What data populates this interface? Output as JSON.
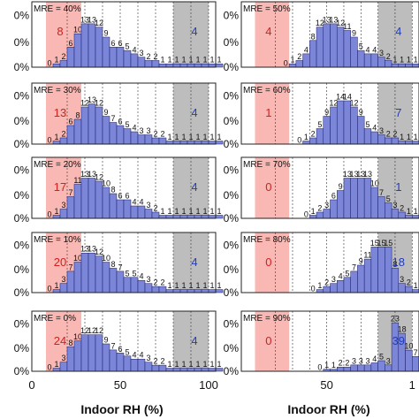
{
  "figure": {
    "xlabel": "Indoor RH (%)",
    "y_tick_suffix": "0%",
    "y_tick_labels": [
      "0%",
      "0%",
      "0%"
    ],
    "x_ticks_left": [
      "0",
      "50",
      "100"
    ],
    "x_ticks_right": [
      "50",
      "1"
    ]
  },
  "colors": {
    "bar": "#7b86d8",
    "bar_edge": "#1a1a66",
    "red_band": "#f9b8b3",
    "gray_band": "#bdbdbd",
    "red_text": "#d02020",
    "blue_text": "#1f3cc0"
  },
  "chart_data": [
    {
      "type": "bar",
      "panel": "left-1",
      "annotation": "MRE = 40%",
      "red_count": "8",
      "blue_count": "4",
      "x_bin_width": 4,
      "x_start": 8,
      "xlim": [
        0,
        104
      ],
      "bar_labels": [
        "0",
        "1",
        "2",
        "6",
        "10",
        "13",
        "13",
        "12",
        "9",
        "6",
        "6",
        "5",
        "4",
        "3",
        "2",
        "2",
        "1",
        "1",
        "1",
        "1",
        "1",
        "1",
        "1",
        "1",
        "1"
      ],
      "values": [
        0,
        1,
        2,
        6,
        10,
        13,
        13,
        12,
        9,
        6,
        6,
        5,
        4,
        3,
        2,
        2,
        1,
        1,
        1,
        1,
        1,
        1,
        1,
        1,
        1
      ],
      "ylim": [
        0,
        18
      ]
    },
    {
      "type": "bar",
      "panel": "right-1",
      "annotation": "MRE = 50%",
      "red_count": "4",
      "blue_count": "4",
      "x_bin_width": 4,
      "x_start": 8,
      "xlim": [
        0,
        104
      ],
      "bar_labels": [
        "",
        "",
        "",
        "",
        "0",
        "1",
        "2",
        "4",
        "8",
        "12",
        "13",
        "13",
        "12",
        "11",
        "9",
        "5",
        "4",
        "4",
        "3",
        "2",
        "1",
        "1",
        "1",
        "1",
        "1"
      ],
      "values": [
        0,
        0,
        0,
        0,
        0,
        1,
        2,
        4,
        8,
        12,
        13,
        13,
        12,
        11,
        9,
        5,
        4,
        4,
        3,
        2,
        1,
        1,
        1,
        1,
        1
      ],
      "ylim": [
        0,
        18
      ]
    },
    {
      "type": "bar",
      "panel": "left-2",
      "annotation": "MRE = 30%",
      "red_count": "13",
      "blue_count": "4",
      "x_bin_width": 4,
      "x_start": 8,
      "xlim": [
        0,
        104
      ],
      "bar_labels": [
        "0",
        "1",
        "2",
        "6",
        "8",
        "12",
        "13",
        "12",
        "9",
        "7",
        "6",
        "5",
        "4",
        "3",
        "3",
        "2",
        "2",
        "1",
        "1",
        "1",
        "1",
        "1",
        "1",
        "1",
        "1"
      ],
      "values": [
        0,
        1,
        2,
        6,
        8,
        12,
        13,
        12,
        9,
        7,
        6,
        5,
        4,
        3,
        3,
        2,
        2,
        1,
        1,
        1,
        1,
        1,
        1,
        1,
        1
      ],
      "ylim": [
        0,
        18
      ]
    },
    {
      "type": "bar",
      "panel": "right-2",
      "annotation": "MRE = 60%",
      "red_count": "1",
      "blue_count": "7",
      "x_bin_width": 4,
      "x_start": 8,
      "xlim": [
        0,
        104
      ],
      "bar_labels": [
        "",
        "",
        "",
        "",
        "",
        "",
        "0",
        "1",
        "2",
        "5",
        "9",
        "12",
        "14",
        "14",
        "12",
        "9",
        "5",
        "4",
        "3",
        "2",
        "2",
        "1",
        "1",
        "1",
        "1"
      ],
      "values": [
        0,
        0,
        0,
        0,
        0,
        0,
        0,
        1,
        2,
        5,
        9,
        12,
        14,
        14,
        12,
        9,
        5,
        4,
        3,
        2,
        2,
        1,
        1,
        1,
        1
      ],
      "ylim": [
        0,
        18
      ]
    },
    {
      "type": "bar",
      "panel": "left-3",
      "annotation": "MRE = 20%",
      "red_count": "17",
      "blue_count": "4",
      "x_bin_width": 4,
      "x_start": 8,
      "xlim": [
        0,
        104
      ],
      "bar_labels": [
        "0",
        "1",
        "3",
        "7",
        "11",
        "13",
        "13",
        "12",
        "10",
        "8",
        "6",
        "6",
        "4",
        "4",
        "3",
        "2",
        "1",
        "1",
        "1",
        "1",
        "1",
        "1",
        "1",
        "1",
        "1"
      ],
      "values": [
        0,
        1,
        3,
        7,
        11,
        13,
        13,
        12,
        10,
        8,
        6,
        6,
        4,
        4,
        3,
        2,
        1,
        1,
        1,
        1,
        1,
        1,
        1,
        1,
        1
      ],
      "ylim": [
        0,
        18
      ]
    },
    {
      "type": "bar",
      "panel": "right-3",
      "annotation": "MRE = 70%",
      "red_count": "0",
      "blue_count": "1",
      "x_bin_width": 4,
      "x_start": 8,
      "xlim": [
        0,
        104
      ],
      "bar_labels": [
        "",
        "",
        "",
        "",
        "",
        "",
        "",
        "0",
        "1",
        "2",
        "3",
        "6",
        "9",
        "13",
        "13",
        "13",
        "13",
        "10",
        "7",
        "5",
        "3",
        "2",
        "1",
        "1",
        "1"
      ],
      "values": [
        0,
        0,
        0,
        0,
        0,
        0,
        0,
        0,
        1,
        2,
        3,
        6,
        9,
        13,
        13,
        13,
        13,
        10,
        7,
        5,
        3,
        2,
        1,
        1,
        1
      ],
      "ylim": [
        0,
        18
      ]
    },
    {
      "type": "bar",
      "panel": "left-4",
      "annotation": "MRE = 10%",
      "red_count": "20",
      "blue_count": "4",
      "x_bin_width": 4,
      "x_start": 8,
      "xlim": [
        0,
        104
      ],
      "bar_labels": [
        "0",
        "1",
        "3",
        "7",
        "10",
        "13",
        "13",
        "12",
        "10",
        "8",
        "7",
        "5",
        "5",
        "4",
        "3",
        "2",
        "2",
        "1",
        "1",
        "1",
        "1",
        "1",
        "1",
        "1",
        "1"
      ],
      "values": [
        0,
        1,
        3,
        7,
        10,
        13,
        13,
        12,
        10,
        8,
        7,
        5,
        5,
        4,
        3,
        2,
        2,
        1,
        1,
        1,
        1,
        1,
        1,
        1,
        1
      ],
      "ylim": [
        0,
        18
      ]
    },
    {
      "type": "bar",
      "panel": "right-4",
      "annotation": "MRE = 80%",
      "red_count": "0",
      "blue_count": "18",
      "x_bin_width": 4,
      "x_start": 8,
      "xlim": [
        0,
        104
      ],
      "bar_labels": [
        "",
        "",
        "",
        "",
        "",
        "",
        "",
        "",
        "0",
        "1",
        "2",
        "3",
        "4",
        "5",
        "7",
        "9",
        "11",
        "15",
        "15",
        "15",
        "8",
        "3",
        "2",
        "1",
        "1"
      ],
      "values": [
        0,
        0,
        0,
        0,
        0,
        0,
        0,
        0,
        0,
        1,
        2,
        3,
        4,
        5,
        7,
        9,
        11,
        15,
        15,
        15,
        8,
        3,
        2,
        1,
        1
      ],
      "ylim": [
        0,
        18
      ]
    },
    {
      "type": "bar",
      "panel": "left-5",
      "annotation": "MRE = 0%",
      "red_count": "24",
      "blue_count": "4",
      "x_bin_width": 4,
      "x_start": 8,
      "xlim": [
        0,
        104
      ],
      "bar_labels": [
        "0",
        "1",
        "3",
        "8",
        "10",
        "12",
        "12",
        "12",
        "9",
        "7",
        "6",
        "5",
        "4",
        "4",
        "3",
        "2",
        "2",
        "1",
        "1",
        "1",
        "1",
        "1",
        "1",
        "1",
        "1"
      ],
      "values": [
        0,
        1,
        3,
        8,
        10,
        12,
        12,
        12,
        9,
        7,
        6,
        5,
        4,
        4,
        3,
        2,
        2,
        1,
        1,
        1,
        1,
        1,
        1,
        1,
        1
      ],
      "ylim": [
        0,
        18
      ]
    },
    {
      "type": "bar",
      "panel": "right-5",
      "annotation": "MRE = 90%",
      "red_count": "0",
      "blue_count": "39",
      "x_bin_width": 4,
      "x_start": 8,
      "xlim": [
        0,
        104
      ],
      "bar_labels": [
        "",
        "",
        "",
        "",
        "",
        "",
        "",
        "",
        "",
        "0",
        "1",
        "1",
        "2",
        "2",
        "3",
        "3",
        "3",
        "4",
        "5",
        "3",
        "23",
        "18",
        "10",
        "7",
        "5"
      ],
      "values": [
        0,
        0,
        0,
        0,
        0,
        0,
        0,
        0,
        0,
        0,
        1,
        1,
        2,
        2,
        3,
        3,
        3,
        4,
        5,
        3,
        23,
        18,
        10,
        7,
        5
      ],
      "ylim": [
        0,
        26
      ]
    }
  ]
}
